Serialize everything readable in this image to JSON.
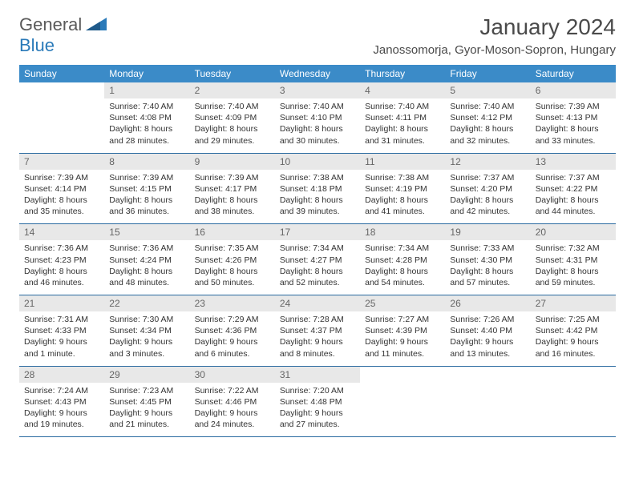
{
  "logo": {
    "general": "General",
    "blue": "Blue"
  },
  "title": "January 2024",
  "location": "Janossomorja, Gyor-Moson-Sopron, Hungary",
  "dow": [
    "Sunday",
    "Monday",
    "Tuesday",
    "Wednesday",
    "Thursday",
    "Friday",
    "Saturday"
  ],
  "colors": {
    "header_bg": "#3b8bc8",
    "header_text": "#ffffff",
    "daynum_bg": "#e8e8e8",
    "daynum_text": "#666666",
    "border": "#2a6aa0",
    "body_text": "#333333"
  },
  "typography": {
    "title_fontsize": 28,
    "location_fontsize": 15,
    "dow_fontsize": 12,
    "daynum_fontsize": 12,
    "cell_fontsize": 10.5
  },
  "weeks": [
    [
      {
        "num": "",
        "lines": []
      },
      {
        "num": "1",
        "lines": [
          "Sunrise: 7:40 AM",
          "Sunset: 4:08 PM",
          "Daylight: 8 hours",
          "and 28 minutes."
        ]
      },
      {
        "num": "2",
        "lines": [
          "Sunrise: 7:40 AM",
          "Sunset: 4:09 PM",
          "Daylight: 8 hours",
          "and 29 minutes."
        ]
      },
      {
        "num": "3",
        "lines": [
          "Sunrise: 7:40 AM",
          "Sunset: 4:10 PM",
          "Daylight: 8 hours",
          "and 30 minutes."
        ]
      },
      {
        "num": "4",
        "lines": [
          "Sunrise: 7:40 AM",
          "Sunset: 4:11 PM",
          "Daylight: 8 hours",
          "and 31 minutes."
        ]
      },
      {
        "num": "5",
        "lines": [
          "Sunrise: 7:40 AM",
          "Sunset: 4:12 PM",
          "Daylight: 8 hours",
          "and 32 minutes."
        ]
      },
      {
        "num": "6",
        "lines": [
          "Sunrise: 7:39 AM",
          "Sunset: 4:13 PM",
          "Daylight: 8 hours",
          "and 33 minutes."
        ]
      }
    ],
    [
      {
        "num": "7",
        "lines": [
          "Sunrise: 7:39 AM",
          "Sunset: 4:14 PM",
          "Daylight: 8 hours",
          "and 35 minutes."
        ]
      },
      {
        "num": "8",
        "lines": [
          "Sunrise: 7:39 AM",
          "Sunset: 4:15 PM",
          "Daylight: 8 hours",
          "and 36 minutes."
        ]
      },
      {
        "num": "9",
        "lines": [
          "Sunrise: 7:39 AM",
          "Sunset: 4:17 PM",
          "Daylight: 8 hours",
          "and 38 minutes."
        ]
      },
      {
        "num": "10",
        "lines": [
          "Sunrise: 7:38 AM",
          "Sunset: 4:18 PM",
          "Daylight: 8 hours",
          "and 39 minutes."
        ]
      },
      {
        "num": "11",
        "lines": [
          "Sunrise: 7:38 AM",
          "Sunset: 4:19 PM",
          "Daylight: 8 hours",
          "and 41 minutes."
        ]
      },
      {
        "num": "12",
        "lines": [
          "Sunrise: 7:37 AM",
          "Sunset: 4:20 PM",
          "Daylight: 8 hours",
          "and 42 minutes."
        ]
      },
      {
        "num": "13",
        "lines": [
          "Sunrise: 7:37 AM",
          "Sunset: 4:22 PM",
          "Daylight: 8 hours",
          "and 44 minutes."
        ]
      }
    ],
    [
      {
        "num": "14",
        "lines": [
          "Sunrise: 7:36 AM",
          "Sunset: 4:23 PM",
          "Daylight: 8 hours",
          "and 46 minutes."
        ]
      },
      {
        "num": "15",
        "lines": [
          "Sunrise: 7:36 AM",
          "Sunset: 4:24 PM",
          "Daylight: 8 hours",
          "and 48 minutes."
        ]
      },
      {
        "num": "16",
        "lines": [
          "Sunrise: 7:35 AM",
          "Sunset: 4:26 PM",
          "Daylight: 8 hours",
          "and 50 minutes."
        ]
      },
      {
        "num": "17",
        "lines": [
          "Sunrise: 7:34 AM",
          "Sunset: 4:27 PM",
          "Daylight: 8 hours",
          "and 52 minutes."
        ]
      },
      {
        "num": "18",
        "lines": [
          "Sunrise: 7:34 AM",
          "Sunset: 4:28 PM",
          "Daylight: 8 hours",
          "and 54 minutes."
        ]
      },
      {
        "num": "19",
        "lines": [
          "Sunrise: 7:33 AM",
          "Sunset: 4:30 PM",
          "Daylight: 8 hours",
          "and 57 minutes."
        ]
      },
      {
        "num": "20",
        "lines": [
          "Sunrise: 7:32 AM",
          "Sunset: 4:31 PM",
          "Daylight: 8 hours",
          "and 59 minutes."
        ]
      }
    ],
    [
      {
        "num": "21",
        "lines": [
          "Sunrise: 7:31 AM",
          "Sunset: 4:33 PM",
          "Daylight: 9 hours",
          "and 1 minute."
        ]
      },
      {
        "num": "22",
        "lines": [
          "Sunrise: 7:30 AM",
          "Sunset: 4:34 PM",
          "Daylight: 9 hours",
          "and 3 minutes."
        ]
      },
      {
        "num": "23",
        "lines": [
          "Sunrise: 7:29 AM",
          "Sunset: 4:36 PM",
          "Daylight: 9 hours",
          "and 6 minutes."
        ]
      },
      {
        "num": "24",
        "lines": [
          "Sunrise: 7:28 AM",
          "Sunset: 4:37 PM",
          "Daylight: 9 hours",
          "and 8 minutes."
        ]
      },
      {
        "num": "25",
        "lines": [
          "Sunrise: 7:27 AM",
          "Sunset: 4:39 PM",
          "Daylight: 9 hours",
          "and 11 minutes."
        ]
      },
      {
        "num": "26",
        "lines": [
          "Sunrise: 7:26 AM",
          "Sunset: 4:40 PM",
          "Daylight: 9 hours",
          "and 13 minutes."
        ]
      },
      {
        "num": "27",
        "lines": [
          "Sunrise: 7:25 AM",
          "Sunset: 4:42 PM",
          "Daylight: 9 hours",
          "and 16 minutes."
        ]
      }
    ],
    [
      {
        "num": "28",
        "lines": [
          "Sunrise: 7:24 AM",
          "Sunset: 4:43 PM",
          "Daylight: 9 hours",
          "and 19 minutes."
        ]
      },
      {
        "num": "29",
        "lines": [
          "Sunrise: 7:23 AM",
          "Sunset: 4:45 PM",
          "Daylight: 9 hours",
          "and 21 minutes."
        ]
      },
      {
        "num": "30",
        "lines": [
          "Sunrise: 7:22 AM",
          "Sunset: 4:46 PM",
          "Daylight: 9 hours",
          "and 24 minutes."
        ]
      },
      {
        "num": "31",
        "lines": [
          "Sunrise: 7:20 AM",
          "Sunset: 4:48 PM",
          "Daylight: 9 hours",
          "and 27 minutes."
        ]
      },
      {
        "num": "",
        "lines": []
      },
      {
        "num": "",
        "lines": []
      },
      {
        "num": "",
        "lines": []
      }
    ]
  ]
}
